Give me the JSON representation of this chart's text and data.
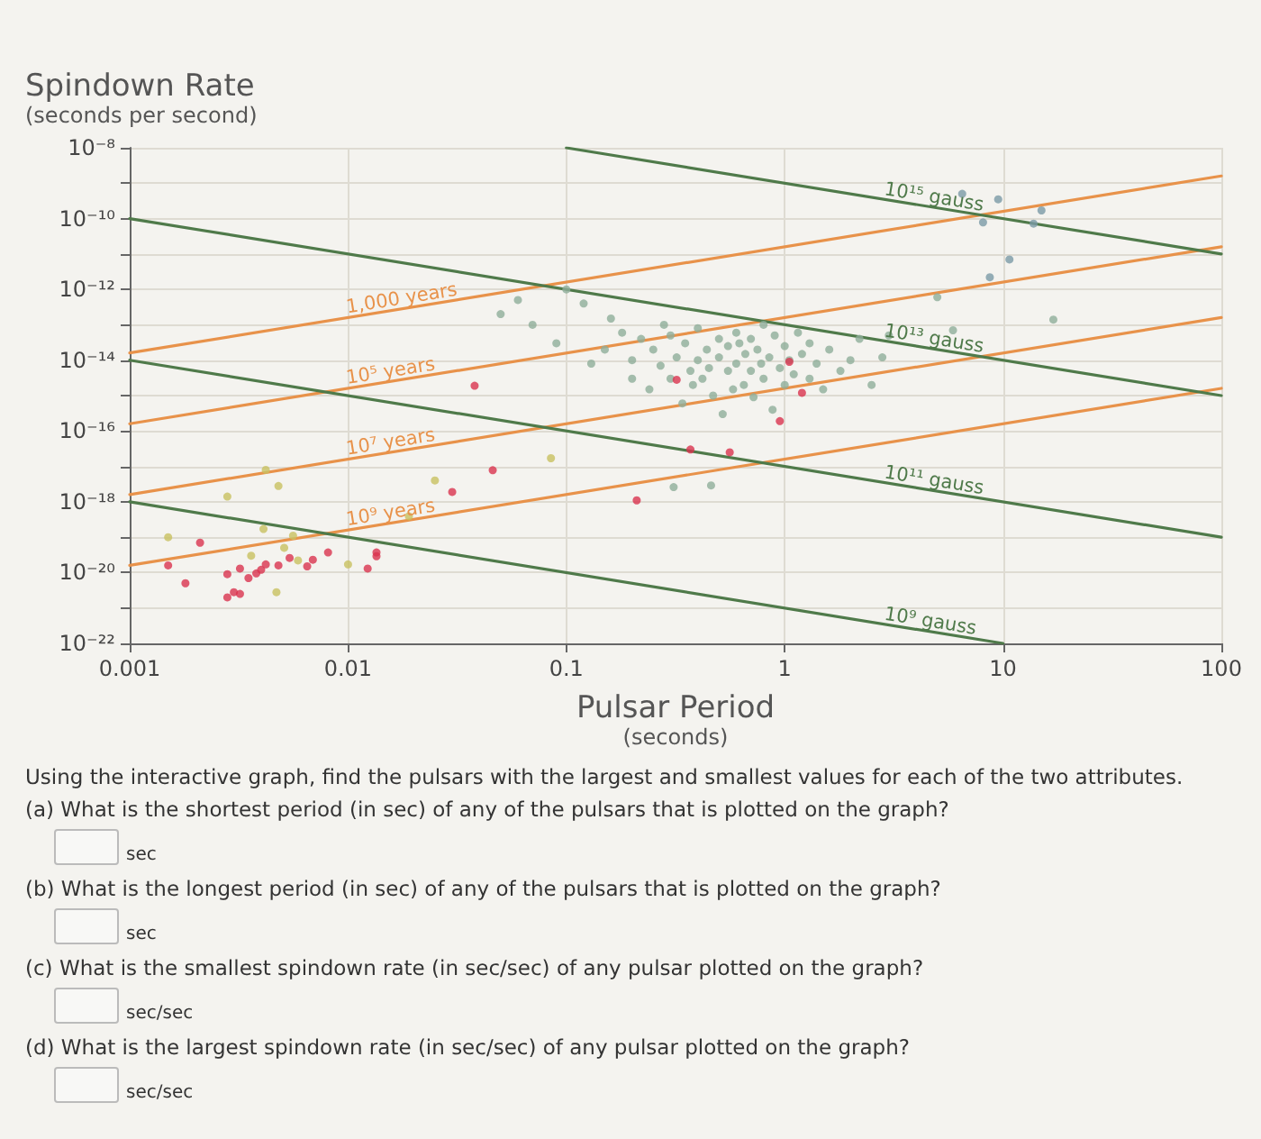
{
  "chart_data": {
    "type": "scatter",
    "xlabel": "Pulsar Period\n(seconds)",
    "ylabel": "Spindown Rate\n(seconds per second)",
    "log": "xy",
    "grid": true,
    "marker": "circle",
    "line_style": "solid",
    "xlim": [
      0.001,
      100
    ],
    "xticks": [
      0.001,
      0.01,
      0.1,
      1,
      10,
      100
    ],
    "ylim": [
      1e-22,
      1e-08
    ],
    "yticks": [
      {
        "value": 1e-22,
        "label": "10⁻²²"
      },
      {
        "value": 1e-21,
        "label": null
      },
      {
        "value": 1e-20,
        "label": "10⁻²⁰"
      },
      {
        "value": 1e-19,
        "label": null
      },
      {
        "value": 1e-18,
        "label": "10⁻¹⁸"
      },
      {
        "value": 1e-17,
        "label": null
      },
      {
        "value": 1e-16,
        "label": "10⁻¹⁶"
      },
      {
        "value": 1e-15,
        "label": null
      },
      {
        "value": 1e-14,
        "label": "10⁻¹⁴"
      },
      {
        "value": 1e-13,
        "label": null
      },
      {
        "value": 1e-12,
        "label": "10⁻¹²"
      },
      {
        "value": 1e-11,
        "label": null
      },
      {
        "value": 1e-10,
        "label": "10⁻¹⁰"
      },
      {
        "value": 1e-09,
        "label": null
      },
      {
        "value": 1e-08,
        "label": "10⁻⁸"
      }
    ],
    "series": [
      {
        "type": "line",
        "name": "1,000 years",
        "marker": "none",
        "color": "#e8924a",
        "x": [
          0.001,
          100
        ],
        "values": [
          1.6e-14,
          1.6e-09
        ]
      },
      {
        "type": "line",
        "name": "10⁵ years",
        "marker": "none",
        "color": "#e8924a",
        "x": [
          0.001,
          100
        ],
        "values": [
          1.6e-16,
          1.6e-11
        ]
      },
      {
        "type": "line",
        "name": "10⁷ years",
        "marker": "none",
        "color": "#e8924a",
        "x": [
          0.001,
          100
        ],
        "values": [
          1.6e-18,
          1.6e-13
        ]
      },
      {
        "type": "line",
        "name": "10⁹ years",
        "marker": "none",
        "color": "#e8924a",
        "x": [
          0.001,
          100
        ],
        "values": [
          1.6e-20,
          1.6e-15
        ]
      },
      {
        "type": "line",
        "name": "10¹⁵ gauss",
        "marker": "none",
        "color": "#4f7a4a",
        "x": [
          0.1,
          100
        ],
        "values": [
          1e-08,
          1e-11
        ]
      },
      {
        "type": "line",
        "name": "10¹³ gauss",
        "marker": "none",
        "color": "#4f7a4a",
        "x": [
          0.001,
          100
        ],
        "values": [
          1e-10,
          1e-15
        ]
      },
      {
        "type": "line",
        "name": "10¹¹ gauss",
        "marker": "none",
        "color": "#4f7a4a",
        "x": [
          0.001,
          100
        ],
        "values": [
          1e-14,
          1e-19
        ]
      },
      {
        "type": "line",
        "name": "10⁹ gauss",
        "marker": "none",
        "color": "#4f7a4a",
        "x": [
          0.001,
          10
        ],
        "values": [
          1e-18,
          1e-22
        ]
      },
      {
        "color": "#8fae9a",
        "x": [
          0.05,
          0.06,
          0.07,
          0.09,
          0.1,
          0.12,
          0.13,
          0.15,
          0.16,
          0.18,
          0.2,
          0.2,
          0.22,
          0.24,
          0.25,
          0.27,
          0.28,
          0.3,
          0.3,
          0.32,
          0.34,
          0.35,
          0.37,
          0.38,
          0.4,
          0.4,
          0.42,
          0.44,
          0.45,
          0.47,
          0.5,
          0.5,
          0.52,
          0.55,
          0.55,
          0.58,
          0.6,
          0.6,
          0.62,
          0.65,
          0.66,
          0.7,
          0.7,
          0.72,
          0.75,
          0.78,
          0.8,
          0.8,
          0.85,
          0.88,
          0.9,
          0.95,
          1.0,
          1.0,
          1.05,
          1.1,
          1.15,
          1.2,
          1.3,
          1.3,
          1.4,
          1.5,
          1.6,
          1.8,
          2.0,
          2.2,
          2.5,
          2.8,
          3.0,
          0.31,
          0.46,
          5.9,
          5.0,
          17
        ],
        "values": [
          2e-13,
          5e-13,
          1e-13,
          3e-14,
          1e-12,
          4e-13,
          8e-15,
          2e-14,
          1.5e-13,
          6e-14,
          3e-15,
          1e-14,
          4e-14,
          1.5e-15,
          2e-14,
          7e-15,
          1e-13,
          3e-15,
          5e-14,
          1.2e-14,
          6e-16,
          3e-14,
          5e-15,
          2e-15,
          1e-14,
          8e-14,
          3e-15,
          2e-14,
          6e-15,
          1e-15,
          4e-14,
          1.2e-14,
          3e-16,
          5e-15,
          2.5e-14,
          1.5e-15,
          8e-15,
          6e-14,
          3e-14,
          2e-15,
          1.5e-14,
          5e-15,
          4e-14,
          9e-16,
          2e-14,
          8e-15,
          3e-15,
          1e-13,
          1.2e-14,
          4e-16,
          5e-14,
          6e-15,
          2e-15,
          2.5e-14,
          1e-14,
          4e-15,
          6e-14,
          1.5e-14,
          3e-15,
          3e-14,
          8e-15,
          1.5e-15,
          2e-14,
          5e-15,
          1e-14,
          4e-14,
          2e-15,
          1.2e-14,
          5e-14,
          2.6e-18,
          2.9e-18,
          7e-14,
          6e-13,
          1.4e-13
        ]
      },
      {
        "color": "#7a9aa6",
        "x": [
          8.7,
          10.7,
          8.1,
          9.5,
          6.5,
          13.8,
          15
        ],
        "values": [
          2.2e-12,
          7e-12,
          7.8e-11,
          3.5e-10,
          5e-10,
          7.2e-11,
          1.7e-10
        ]
      },
      {
        "color": "#c8c060",
        "x": [
          0.0036,
          0.0047,
          0.0051,
          0.0056,
          0.0041,
          0.0028,
          0.0048,
          0.0042,
          0.0059,
          0.01,
          0.019,
          0.025,
          0.085,
          0.0015
        ],
        "values": [
          3e-20,
          2.8e-21,
          5e-20,
          1.1e-19,
          1.7e-19,
          1.4e-18,
          2.8e-18,
          8e-18,
          2.2e-20,
          1.7e-20,
          3.9e-19,
          4e-18,
          1.7e-17,
          1e-19
        ]
      },
      {
        "color": "#d9334f",
        "x": [
          0.0015,
          0.0018,
          0.0021,
          0.0028,
          0.003,
          0.0032,
          0.0028,
          0.0032,
          0.0035,
          0.0038,
          0.004,
          0.0042,
          0.0048,
          0.0054,
          0.0065,
          0.0069,
          0.0081,
          0.0123,
          0.0135,
          0.0135,
          0.03,
          0.046,
          0.038,
          0.21,
          0.37,
          0.56,
          0.95,
          1.2,
          1.05,
          0.32
        ],
        "values": [
          1.6e-20,
          5e-21,
          7e-20,
          2e-21,
          2.8e-21,
          2.5e-21,
          9e-21,
          1.3e-20,
          7e-21,
          9.5e-21,
          1.2e-20,
          1.7e-20,
          1.6e-20,
          2.6e-20,
          1.5e-20,
          2.3e-20,
          3.7e-20,
          1.3e-20,
          2.9e-20,
          3.7e-20,
          1.9e-18,
          7.8e-18,
          1.9e-15,
          1.1e-18,
          3e-17,
          2.5e-17,
          1.9e-16,
          1.2e-15,
          9e-15,
          2.8e-15
        ]
      }
    ],
    "annotations": [
      "Using the interactive graph, find the pulsars with the largest and smallest values for each of the two attributes.",
      "(a) What is the shortest period (in sec) of any of the pulsars that is plotted on the graph?",
      "sec",
      "(b) What is the longest period (in sec) of any of the pulsars that is plotted on the graph?",
      "sec",
      "(c) What is the smallest spindown rate (in sec/sec) of any pulsar plotted on the graph?",
      "sec/sec",
      "(d) What is the largest spindown rate (in sec/sec) of any pulsar plotted on the graph?",
      "sec/sec"
    ]
  }
}
